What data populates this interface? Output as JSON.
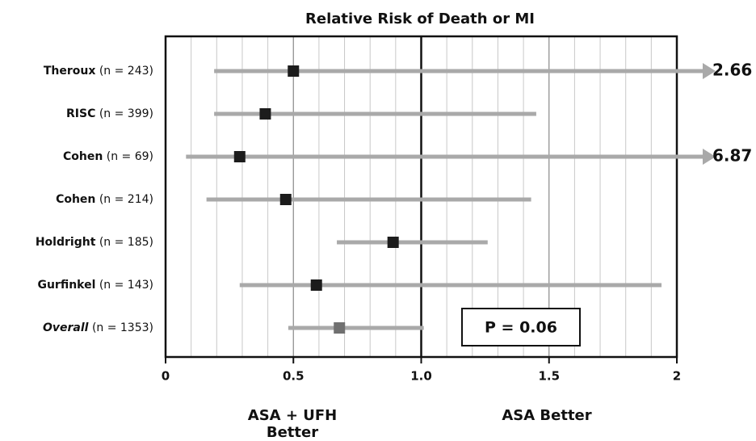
{
  "chart_data": {
    "type": "forest",
    "title": "Relative Risk of Death or MI",
    "studies": [
      {
        "name": "Theroux",
        "n_label": "(n = 243)",
        "value": 0.5,
        "low": 0.19,
        "high": 2.66
      },
      {
        "name": "RISC",
        "n_label": "(n = 399)",
        "value": 0.39,
        "low": 0.19,
        "high": 1.45
      },
      {
        "name": "Cohen",
        "n_label": "(n = 69)",
        "value": 0.29,
        "low": 0.08,
        "high": 6.87
      },
      {
        "name": "Cohen",
        "n_label": "(n = 214)",
        "value": 0.47,
        "low": 0.16,
        "high": 1.43
      },
      {
        "name": "Holdright",
        "n_label": "(n = 185)",
        "value": 0.89,
        "low": 0.67,
        "high": 1.26
      },
      {
        "name": "Gurfinkel",
        "n_label": "(n = 143)",
        "value": 0.59,
        "low": 0.29,
        "high": 1.94
      },
      {
        "name": "Overall",
        "n_label": "(n = 1353)",
        "value": 0.68,
        "low": 0.48,
        "high": 1.01,
        "summary": true
      }
    ],
    "xlim": [
      0,
      2
    ],
    "xticks": [
      0,
      0.5,
      {
        "value": 1,
        "label": "1.0"
      },
      1.5,
      2
    ],
    "minor_xticks": [
      0.1,
      0.2,
      0.3,
      0.4,
      0.6,
      0.7,
      0.8,
      0.9,
      1.1,
      1.2,
      1.3,
      1.4,
      1.6,
      1.7,
      1.8,
      1.9
    ],
    "reference_line": 1,
    "ci_color": "#a9a9a9",
    "point_color": "#1c1c1c",
    "summary_color": "#707070",
    "left_label": [
      "ASA + UFH",
      "Better"
    ],
    "right_label": "ASA Better",
    "p_value_box": "P = 0.06"
  }
}
